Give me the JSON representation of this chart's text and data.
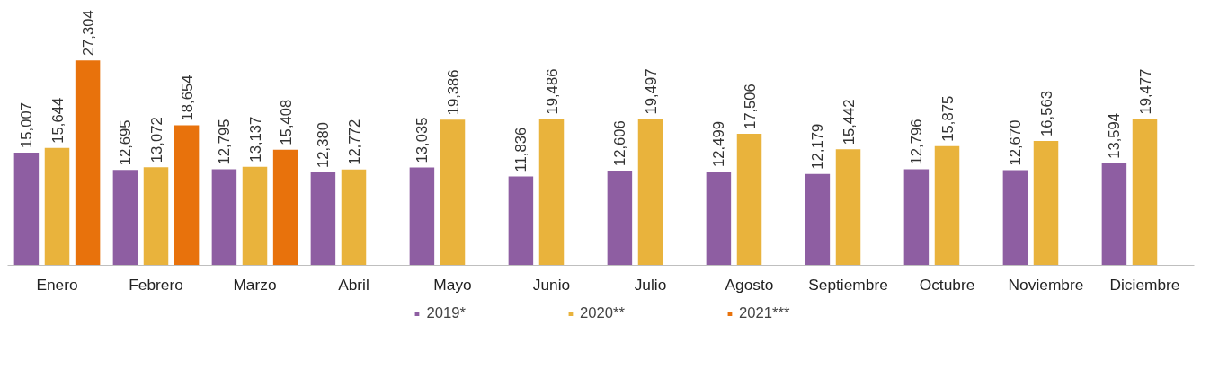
{
  "chart_data": {
    "type": "bar",
    "categories": [
      "Enero",
      "Febrero",
      "Marzo",
      "Abril",
      "Mayo",
      "Junio",
      "Julio",
      "Agosto",
      "Septiembre",
      "Octubre",
      "Noviembre",
      "Diciembre"
    ],
    "series": [
      {
        "name": "2019*",
        "color": "#8e5ea2",
        "values": [
          15007,
          12695,
          12795,
          12380,
          13035,
          11836,
          12606,
          12499,
          12179,
          12796,
          12670,
          13594
        ],
        "value_labels": [
          "15,007",
          "12,695",
          "12,795",
          "12,380",
          "13,035",
          "11,836",
          "12,606",
          "12,499",
          "12,179",
          "12,796",
          "12,670",
          "13,594"
        ]
      },
      {
        "name": "2020**",
        "color": "#e9b33c",
        "values": [
          15644,
          13072,
          13137,
          12772,
          19386,
          19486,
          19497,
          17506,
          15442,
          15875,
          16563,
          19477
        ],
        "value_labels": [
          "15,644",
          "13,072",
          "13,137",
          "12,772",
          "19,386",
          "19,486",
          "19,497",
          "17,506",
          "15,442",
          "15,875",
          "16,563",
          "19,477"
        ]
      },
      {
        "name": "2021***",
        "color": "#e8720c",
        "values": [
          27304,
          18654,
          15408,
          null,
          null,
          null,
          null,
          null,
          null,
          null,
          null,
          null
        ],
        "value_labels": [
          "27,304",
          "18,654",
          "15,408",
          null,
          null,
          null,
          null,
          null,
          null,
          null,
          null,
          null
        ]
      }
    ],
    "legend": "bottom"
  }
}
